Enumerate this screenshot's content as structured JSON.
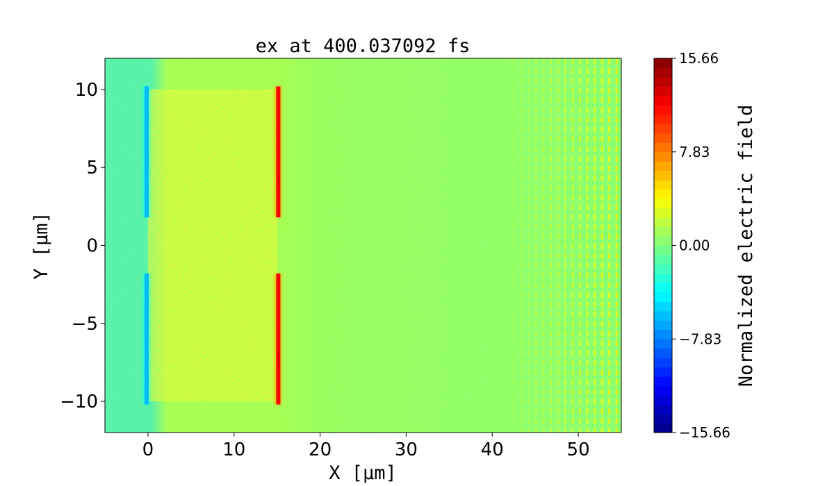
{
  "chart_data": {
    "type": "heatmap",
    "title": "ex at 400.037092 fs",
    "xlabel": "X [μm]",
    "ylabel": "Y [μm]",
    "xlim": [
      -5,
      55
    ],
    "ylim": [
      -12,
      12
    ],
    "x_ticks": [
      0,
      10,
      20,
      30,
      40,
      50
    ],
    "x_tick_labels": [
      "0",
      "10",
      "20",
      "30",
      "40",
      "50"
    ],
    "y_ticks": [
      -10,
      -5,
      0,
      5,
      10
    ],
    "y_tick_labels": [
      "−10",
      "−5",
      "0",
      "5",
      "10"
    ],
    "colormap": "jet",
    "colorbar": {
      "label": "Normalized electric field",
      "min": -15.66,
      "max": 15.66,
      "ticks": [
        -15.66,
        -7.83,
        0.0,
        7.83,
        15.66
      ],
      "tick_labels": [
        "−15.66",
        "−7.83",
        "0.00",
        "7.83",
        "15.66"
      ],
      "levels": 40
    },
    "features": [
      {
        "name": "negative field strip (target front surface)",
        "x": -0.2,
        "y_ranges": [
          [
            1.8,
            10.2
          ],
          [
            -10.2,
            -1.8
          ]
        ],
        "value": -6.0
      },
      {
        "name": "positive field strip (target rear surface)",
        "x": 15.1,
        "y_ranges": [
          [
            1.8,
            10.2
          ],
          [
            -10.2,
            -1.8
          ]
        ],
        "value": 12.0
      },
      {
        "name": "noisy plasma region",
        "x_range": [
          0,
          15
        ],
        "y_range": [
          -10,
          10
        ],
        "value": 2.5
      },
      {
        "name": "oscillating wave fronts",
        "x_range": [
          40,
          55
        ],
        "y_range": [
          -12,
          12
        ],
        "value": 1.5
      }
    ]
  },
  "colors": {
    "background_field": "#8cff6e",
    "negative_strip": "#00c8ff",
    "positive_strip": "#ff4000"
  }
}
